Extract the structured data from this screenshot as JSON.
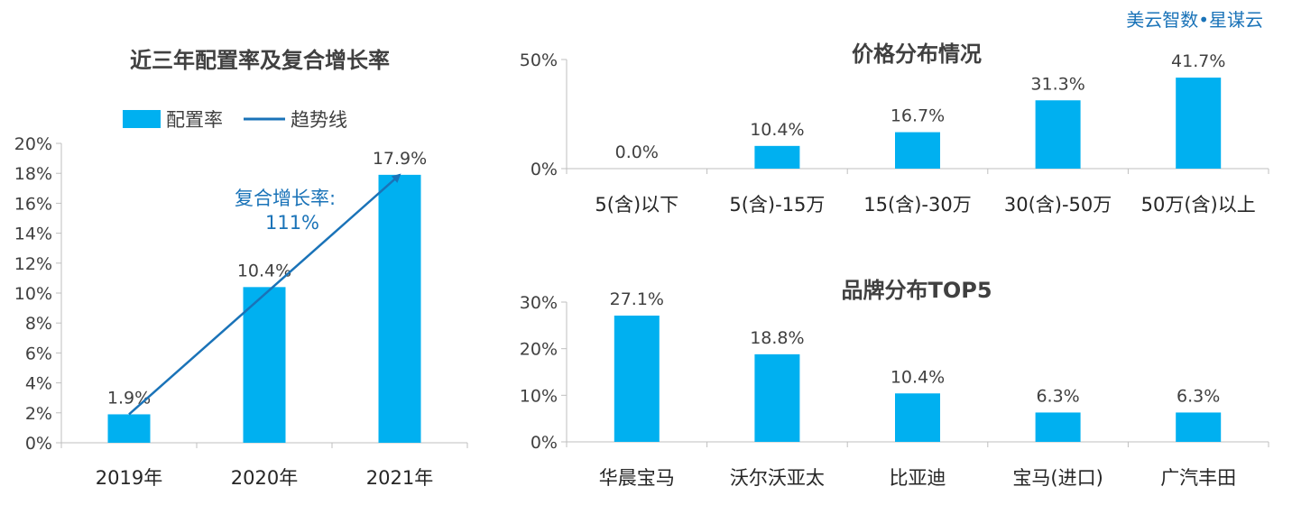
{
  "brand": "美云智数•星谋云",
  "chart_data": [
    {
      "type": "bar",
      "title": "近三年配置率及复合增长率",
      "categories": [
        "2019年",
        "2020年",
        "2021年"
      ],
      "series": [
        {
          "name": "配置率",
          "values": [
            1.9,
            10.4,
            17.9
          ]
        }
      ],
      "value_labels": [
        "1.9%",
        "10.4%",
        "17.9%"
      ],
      "trendline": {
        "name": "趋势线",
        "from": 1.9,
        "to": 17.9
      },
      "annotation": [
        "复合增长率:",
        "111%"
      ],
      "ylim": [
        0,
        20
      ],
      "yticks": [
        0,
        2,
        4,
        6,
        8,
        10,
        12,
        14,
        16,
        18,
        20
      ],
      "ytick_labels": [
        "0%",
        "2%",
        "4%",
        "6%",
        "8%",
        "10%",
        "12%",
        "14%",
        "16%",
        "18%",
        "20%"
      ],
      "legend": "top",
      "grid": false,
      "color": "#00b0f0",
      "line_color": "#1a73b8"
    },
    {
      "type": "bar",
      "title": "价格分布情况",
      "categories": [
        "5(含)以下",
        "5(含)-15万",
        "15(含)-30万",
        "30(含)-50万",
        "50万(含)以上"
      ],
      "values": [
        0.0,
        10.4,
        16.7,
        31.3,
        41.7
      ],
      "value_labels": [
        "0.0%",
        "10.4%",
        "16.7%",
        "31.3%",
        "41.7%"
      ],
      "ylim": [
        0,
        50
      ],
      "yticks": [
        0,
        50
      ],
      "ytick_labels": [
        "0%",
        "50%"
      ],
      "grid": false,
      "color": "#00b0f0"
    },
    {
      "type": "bar",
      "title": "品牌分布TOP5",
      "categories": [
        "华晨宝马",
        "沃尔沃亚太",
        "比亚迪",
        "宝马(进口)",
        "广汽丰田"
      ],
      "values": [
        27.1,
        18.8,
        10.4,
        6.3,
        6.3
      ],
      "value_labels": [
        "27.1%",
        "18.8%",
        "10.4%",
        "6.3%",
        "6.3%"
      ],
      "ylim": [
        0,
        30
      ],
      "yticks": [
        0,
        10,
        20,
        30
      ],
      "ytick_labels": [
        "0%",
        "10%",
        "20%",
        "30%"
      ],
      "grid": false,
      "color": "#00b0f0"
    }
  ]
}
